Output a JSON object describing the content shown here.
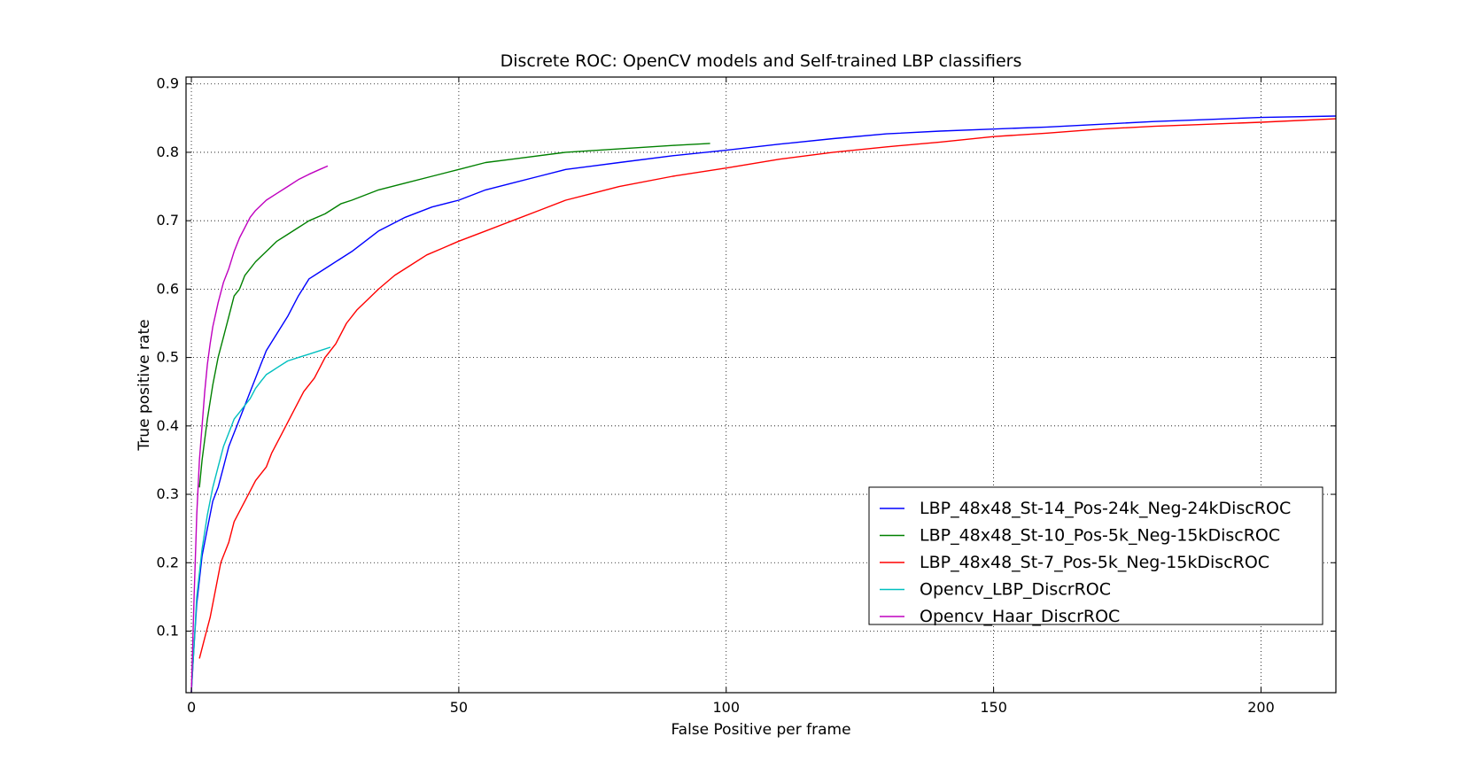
{
  "chart_data": {
    "type": "line",
    "title": "Discrete ROC: OpenCV models and Self-trained LBP classifiers",
    "xlabel": "False Positive per frame",
    "ylabel": "True positive rate",
    "xlim": [
      -1,
      214
    ],
    "ylim": [
      0.01,
      0.91
    ],
    "xticks": [
      0,
      50,
      100,
      150,
      200
    ],
    "yticks": [
      0.1,
      0.2,
      0.3,
      0.4,
      0.5,
      0.6,
      0.7,
      0.8,
      0.9
    ],
    "grid": true,
    "legend_position": "lower-right",
    "series": [
      {
        "name": "LBP_48x48_St-14_Pos-24k_Neg-24kDiscROC",
        "color": "#0000ff",
        "x": [
          0,
          0.5,
          1,
          2,
          3,
          4,
          5,
          6,
          7,
          8,
          9,
          10,
          11,
          12,
          13,
          14,
          16,
          18,
          20,
          22,
          24,
          26,
          28,
          30,
          35,
          40,
          45,
          50,
          55,
          60,
          65,
          70,
          75,
          80,
          90,
          100,
          110,
          120,
          130,
          140,
          150,
          160,
          170,
          180,
          190,
          200,
          214
        ],
        "y": [
          0.01,
          0.08,
          0.14,
          0.21,
          0.25,
          0.29,
          0.31,
          0.34,
          0.37,
          0.39,
          0.41,
          0.43,
          0.45,
          0.47,
          0.49,
          0.51,
          0.535,
          0.56,
          0.59,
          0.615,
          0.625,
          0.635,
          0.645,
          0.655,
          0.685,
          0.705,
          0.72,
          0.73,
          0.745,
          0.755,
          0.765,
          0.775,
          0.78,
          0.785,
          0.795,
          0.803,
          0.812,
          0.82,
          0.827,
          0.831,
          0.834,
          0.837,
          0.841,
          0.845,
          0.848,
          0.851,
          0.853
        ]
      },
      {
        "name": "LBP_48x48_St-10_Pos-5k_Neg-15kDiscROC",
        "color": "#008000",
        "x": [
          1.5,
          2,
          3,
          4,
          5,
          6,
          7,
          8,
          9,
          10,
          12,
          14,
          16,
          18,
          20,
          22,
          25,
          28,
          30,
          35,
          40,
          45,
          50,
          55,
          60,
          70,
          80,
          90,
          97
        ],
        "y": [
          0.31,
          0.35,
          0.41,
          0.46,
          0.5,
          0.53,
          0.56,
          0.59,
          0.6,
          0.62,
          0.64,
          0.655,
          0.67,
          0.68,
          0.69,
          0.7,
          0.71,
          0.725,
          0.73,
          0.745,
          0.755,
          0.765,
          0.775,
          0.785,
          0.79,
          0.8,
          0.805,
          0.81,
          0.813
        ]
      },
      {
        "name": "LBP_48x48_St-7_Pos-5k_Neg-15kDiscROC",
        "color": "#ff0000",
        "x": [
          1.5,
          2.5,
          3.5,
          4.5,
          5.5,
          7,
          8,
          10,
          12,
          14,
          15,
          17,
          19,
          21,
          23,
          25,
          27,
          29,
          31,
          33,
          35,
          38,
          41,
          44,
          47,
          50,
          55,
          60,
          65,
          70,
          75,
          80,
          90,
          100,
          110,
          120,
          130,
          140,
          150,
          160,
          170,
          180,
          190,
          200,
          214
        ],
        "y": [
          0.06,
          0.09,
          0.12,
          0.16,
          0.2,
          0.23,
          0.26,
          0.29,
          0.32,
          0.34,
          0.36,
          0.39,
          0.42,
          0.45,
          0.47,
          0.5,
          0.52,
          0.55,
          0.57,
          0.585,
          0.6,
          0.62,
          0.635,
          0.65,
          0.66,
          0.67,
          0.685,
          0.7,
          0.715,
          0.73,
          0.74,
          0.75,
          0.765,
          0.777,
          0.79,
          0.8,
          0.808,
          0.815,
          0.823,
          0.828,
          0.834,
          0.838,
          0.841,
          0.844,
          0.849
        ]
      },
      {
        "name": "Opencv_LBP_DiscrROC",
        "color": "#00bfbf",
        "x": [
          0,
          0.5,
          1,
          2,
          3,
          4,
          5,
          6,
          7,
          8,
          9,
          10,
          11,
          12,
          13,
          14,
          15,
          16,
          18,
          20,
          22,
          24,
          26
        ],
        "y": [
          0.01,
          0.08,
          0.15,
          0.22,
          0.27,
          0.31,
          0.34,
          0.37,
          0.39,
          0.41,
          0.42,
          0.43,
          0.44,
          0.455,
          0.465,
          0.475,
          0.48,
          0.485,
          0.495,
          0.5,
          0.505,
          0.51,
          0.515
        ]
      },
      {
        "name": "Opencv_Haar_DiscrROC",
        "color": "#bf00bf",
        "x": [
          0,
          0.5,
          1,
          1.5,
          2,
          2.5,
          3,
          3.5,
          4,
          5,
          6,
          7,
          8,
          9,
          10,
          11,
          12,
          14,
          16,
          18,
          20,
          22,
          24,
          25.5
        ],
        "y": [
          0.01,
          0.15,
          0.27,
          0.35,
          0.4,
          0.45,
          0.49,
          0.52,
          0.545,
          0.58,
          0.61,
          0.63,
          0.655,
          0.675,
          0.69,
          0.705,
          0.715,
          0.73,
          0.74,
          0.75,
          0.76,
          0.768,
          0.775,
          0.78
        ]
      }
    ]
  }
}
